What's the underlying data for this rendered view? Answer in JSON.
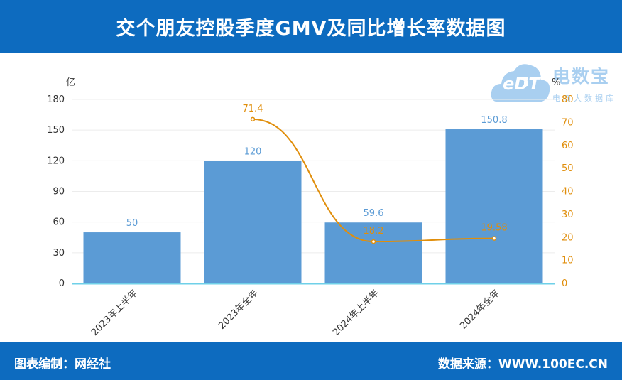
{
  "header": {
    "title": "交个朋友控股季度GMV及同比增长率数据图"
  },
  "footer": {
    "left": "图表编制：网经社",
    "right": "数据来源：WWW.100EC.CN"
  },
  "watermark": {
    "title": "电数宝",
    "subtitle": "电商大数据库",
    "mark": "eDT"
  },
  "colors": {
    "header_bg": "#0d6bbf",
    "bar": "#5b9bd5",
    "line": "#e08e0b",
    "axis_line": "#6fd0e8"
  },
  "chart_data": {
    "type": "bar",
    "categories": [
      "2023年上半年",
      "2023年全年",
      "2024年上半年",
      "2024年全年"
    ],
    "series": [
      {
        "values": [
          50,
          120,
          59.6,
          150.8
        ],
        "value_labels": [
          "50",
          "120",
          "59.6",
          "150.8"
        ],
        "axis": "left",
        "kind": "bar"
      },
      {
        "values": [
          null,
          71.4,
          18.2,
          19.58
        ],
        "value_labels": [
          "",
          "71.4",
          "18.2",
          "19.58"
        ],
        "axis": "right",
        "kind": "line"
      }
    ],
    "y_left": {
      "unit": "亿",
      "ticks": [
        "0",
        "30",
        "60",
        "90",
        "120",
        "150",
        "180"
      ],
      "range": [
        0,
        180
      ]
    },
    "y_right": {
      "unit": "%",
      "ticks": [
        "0",
        "10",
        "20",
        "30",
        "40",
        "50",
        "60",
        "70",
        "80"
      ],
      "range": [
        0,
        80
      ]
    },
    "grid": true
  }
}
